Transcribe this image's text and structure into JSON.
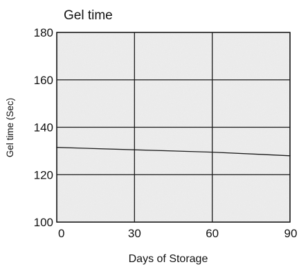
{
  "chart_data": {
    "type": "line",
    "title": "Gel time",
    "xlabel": "Days of Storage",
    "ylabel": "Gel time (Sec)",
    "x_ticks": [
      "0",
      "30",
      "60",
      "90"
    ],
    "y_ticks": [
      "180",
      "160",
      "140",
      "120",
      "100"
    ],
    "xlim": [
      0,
      90
    ],
    "ylim": [
      100,
      180
    ],
    "grid": true,
    "series": [
      {
        "x": [
          0,
          30,
          60,
          90
        ],
        "y": [
          131.5,
          130.5,
          129.5,
          128
        ]
      }
    ],
    "colors": {
      "plot_background": "#ededed",
      "grid": "#1a1a1a",
      "line": "#1a1a1a"
    }
  }
}
